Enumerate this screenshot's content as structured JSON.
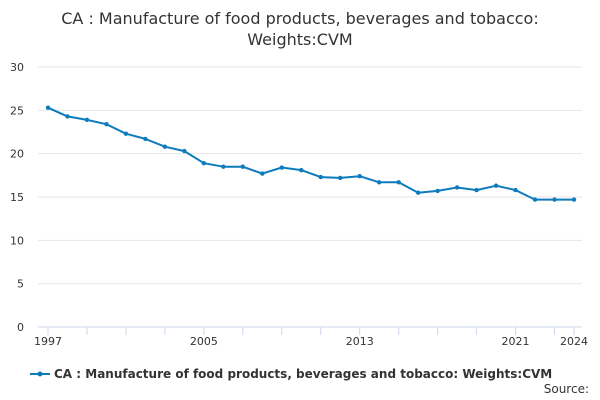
{
  "chart_data": {
    "type": "line",
    "title_line1": "CA : Manufacture of food products, beverages and tobacco:",
    "title_line2": "Weights:CVM",
    "xlabel": "",
    "ylabel": "",
    "ylim": [
      0,
      30
    ],
    "yticks": [
      0,
      5,
      10,
      15,
      20,
      25,
      30
    ],
    "xlim": [
      1997,
      2024
    ],
    "xtick_labels": [
      "1997",
      "2005",
      "2013",
      "2021",
      "2024"
    ],
    "grid": true,
    "legend_position": "bottom",
    "series": [
      {
        "name": "CA : Manufacture of food products, beverages and tobacco: Weights:CVM",
        "color": "#0e7bbd",
        "x": [
          1997,
          1998,
          1999,
          2000,
          2001,
          2002,
          2003,
          2004,
          2005,
          2006,
          2007,
          2008,
          2009,
          2010,
          2011,
          2012,
          2013,
          2014,
          2015,
          2016,
          2017,
          2018,
          2019,
          2020,
          2021,
          2022,
          2023,
          2024
        ],
        "values": [
          25.3,
          24.3,
          23.9,
          23.4,
          22.3,
          21.7,
          20.8,
          20.3,
          18.9,
          18.5,
          18.5,
          17.7,
          18.4,
          18.1,
          17.3,
          17.2,
          17.4,
          16.7,
          16.7,
          15.5,
          15.7,
          16.1,
          15.8,
          16.3,
          15.8,
          14.7,
          14.7,
          14.7
        ]
      }
    ]
  },
  "footer": {
    "source_label": "Source:"
  }
}
